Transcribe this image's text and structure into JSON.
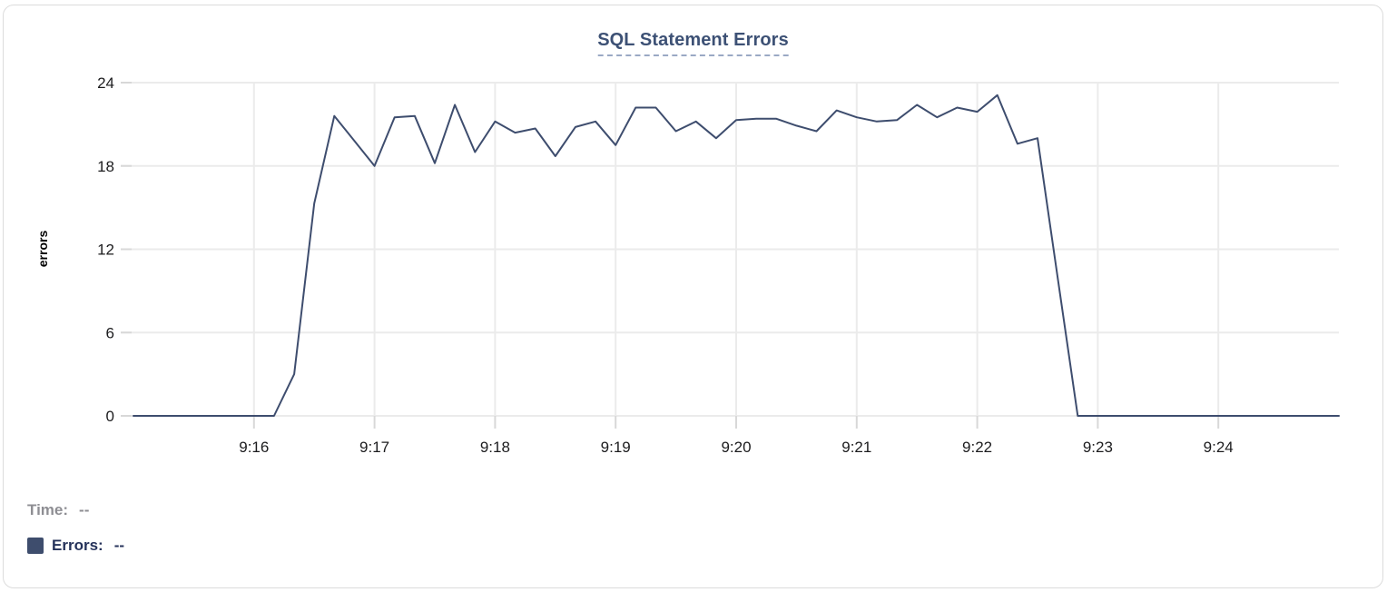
{
  "card": {
    "title": "SQL Statement Errors"
  },
  "footer": {
    "time_label": "Time:",
    "time_value": "--",
    "errors_label": "Errors:",
    "errors_value": "--"
  },
  "colors": {
    "line": "#3e4d6e",
    "title_text": "#3d5175",
    "title_underline": "#9aa9c4",
    "grid": "#ebebeb",
    "grid_tick": "#d8d8d8",
    "axis_text": "#1c1c1e",
    "time_text": "#8e8e93",
    "errors_text": "#25325a",
    "legend_square": "#3e4d6d",
    "card_border": "#dcdcdc"
  },
  "chart_data": {
    "type": "line",
    "title": "SQL Statement Errors",
    "xlabel": "",
    "ylabel": "errors",
    "ylim": [
      0,
      24
    ],
    "yticks": [
      0,
      6,
      12,
      18,
      24
    ],
    "grid": true,
    "legend_position": "none",
    "x_start_time": "9:15:00",
    "x_end_time": "9:25:00",
    "point_interval_seconds": 10,
    "xtick_labels": [
      "9:16",
      "9:17",
      "9:18",
      "9:19",
      "9:20",
      "9:21",
      "9:22",
      "9:23",
      "9:24"
    ],
    "xtick_point_indices": [
      6,
      12,
      18,
      24,
      30,
      36,
      42,
      48,
      54
    ],
    "series": [
      {
        "name": "Errors",
        "color": "#3e4d6e",
        "values": [
          0,
          0,
          0,
          0,
          0,
          0,
          0,
          0,
          3,
          15.3,
          21.6,
          19.8,
          18,
          21.5,
          21.6,
          18.2,
          22.4,
          19,
          21.2,
          20.4,
          20.7,
          18.7,
          20.8,
          21.2,
          19.5,
          22.2,
          22.2,
          20.5,
          21.2,
          20,
          21.3,
          21.4,
          21.4,
          20.9,
          20.5,
          22,
          21.5,
          21.2,
          21.3,
          22.4,
          21.5,
          22.2,
          21.9,
          23.1,
          19.6,
          20,
          10,
          0,
          0,
          0,
          0,
          0,
          0,
          0,
          0,
          0,
          0,
          0,
          0,
          0,
          0
        ]
      }
    ]
  }
}
